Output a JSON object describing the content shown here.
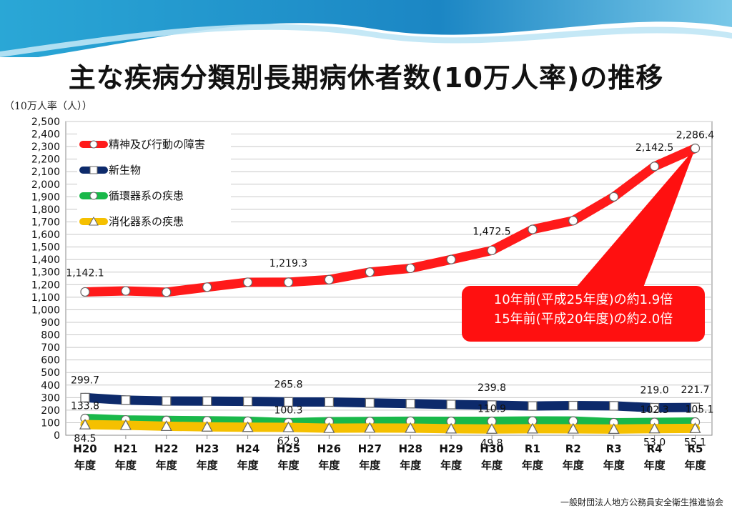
{
  "title": "主な疾病分類別長期病休者数(10万人率)の推移",
  "unit_label": "（10万人率（人））",
  "source": "一般財団法人地方公務員安全衛生推進協会",
  "callout": {
    "line1": "10年前(平成25年度)の約1.9倍",
    "line2": "15年前(平成20年度)の約2.0倍",
    "color": "#ff1010"
  },
  "chart_data": {
    "type": "line",
    "title": "主な疾病分類別長期病休者数(10万人率)の推移",
    "ylabel": "10万人率（人）",
    "ylim": [
      0,
      2500
    ],
    "ytick_step": 100,
    "grid": "horizontal",
    "legend_position": "top-left",
    "categories": [
      [
        "H20",
        "年度"
      ],
      [
        "H21",
        "年度"
      ],
      [
        "H22",
        "年度"
      ],
      [
        "H23",
        "年度"
      ],
      [
        "H24",
        "年度"
      ],
      [
        "H25",
        "年度"
      ],
      [
        "H26",
        "年度"
      ],
      [
        "H27",
        "年度"
      ],
      [
        "H28",
        "年度"
      ],
      [
        "H29",
        "年度"
      ],
      [
        "H30",
        "年度"
      ],
      [
        "R1",
        "年度"
      ],
      [
        "R2",
        "年度"
      ],
      [
        "R3",
        "年度"
      ],
      [
        "R4",
        "年度"
      ],
      [
        "R5",
        "年度"
      ]
    ],
    "series": [
      {
        "name": "精神及び行動の障害",
        "color": "#ff1a1a",
        "marker": "circle",
        "values": [
          1142.1,
          1150,
          1140,
          1180,
          1219,
          1219.3,
          1240,
          1300,
          1330,
          1400,
          1472.5,
          1640,
          1710,
          1900,
          2142.5,
          2286.4
        ],
        "labels": {
          "0": "1,142.1",
          "5": "1,219.3",
          "10": "1,472.5",
          "14": "2,142.5",
          "15": "2,286.4"
        }
      },
      {
        "name": "新生物",
        "color": "#0d2a6b",
        "marker": "square",
        "values": [
          299.7,
          280,
          273,
          272,
          270,
          265.8,
          265,
          258,
          252,
          245,
          239.8,
          233,
          236,
          234,
          219.0,
          221.7
        ],
        "labels": {
          "0": "299.7",
          "5": "265.8",
          "10": "239.8",
          "14": "219.0",
          "15": "221.7"
        }
      },
      {
        "name": "循環器系の疾患",
        "color": "#19b84a",
        "marker": "circle",
        "values": [
          133.8,
          122,
          118,
          115,
          112,
          100.3,
          108,
          110,
          112,
          111,
          110.9,
          114,
          113,
          100,
          102.3,
          105.1
        ],
        "labels": {
          "0": "133.8",
          "5": "100.3",
          "10": "110.9",
          "14": "102.3",
          "15": "105.1"
        }
      },
      {
        "name": "消化器系の疾患",
        "color": "#f5c000",
        "marker": "triangle",
        "values": [
          84.5,
          80,
          72,
          67,
          64,
          62.9,
          56,
          58,
          57,
          52,
          49.8,
          52,
          51,
          49,
          53.0,
          55.1
        ],
        "labels": {
          "0": "84.5",
          "5": "62.9",
          "10": "49.8",
          "14": "53.0",
          "15": "55.1"
        }
      }
    ]
  }
}
